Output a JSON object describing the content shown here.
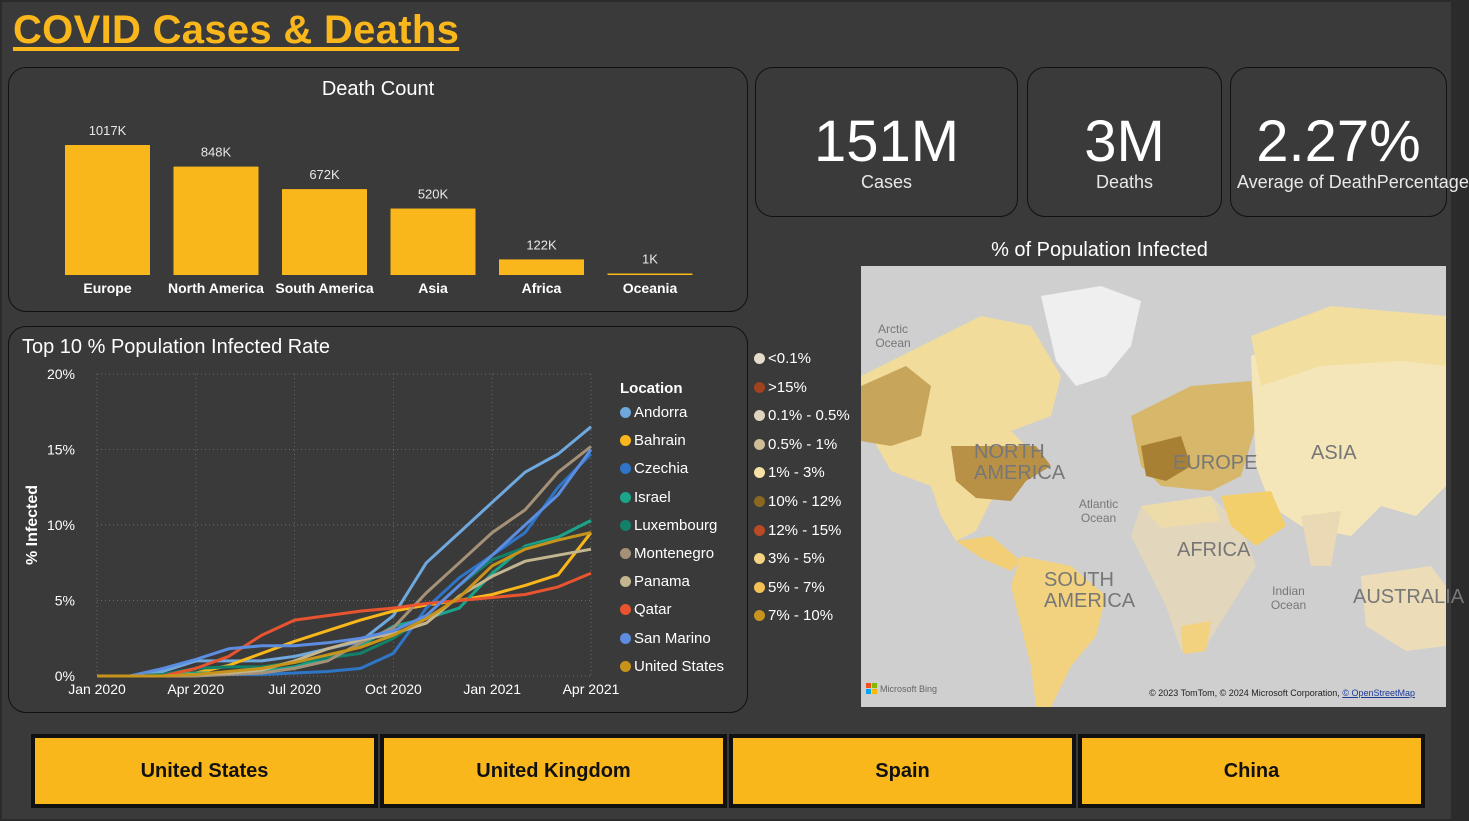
{
  "header": {
    "title": "COVID Cases & Deaths"
  },
  "death_count": {
    "title": "Death Count",
    "chart_data": {
      "type": "bar",
      "title": "Death Count",
      "categories": [
        "Europe",
        "North America",
        "South America",
        "Asia",
        "Africa",
        "Oceania"
      ],
      "values": [
        1017000,
        848000,
        672000,
        520000,
        122000,
        1000
      ],
      "data_labels": [
        "1017K",
        "848K",
        "672K",
        "520K",
        "122K",
        "1K"
      ],
      "color": "#f9b71b"
    }
  },
  "kpis": [
    {
      "value": "151M",
      "label": "Cases"
    },
    {
      "value": "3M",
      "label": "Deaths"
    },
    {
      "value": "2.27%",
      "label": "Average of DeathPercentage"
    }
  ],
  "infected_chart": {
    "title": "Top 10 % Population Infected Rate",
    "chart_data": {
      "type": "line",
      "title": "Top 10 % Population Infected Rate",
      "ylabel": "% Infected",
      "xlabel": "",
      "x": [
        "Jan 2020",
        "Feb 2020",
        "Mar 2020",
        "Apr 2020",
        "May 2020",
        "Jun 2020",
        "Jul 2020",
        "Aug 2020",
        "Sep 2020",
        "Oct 2020",
        "Nov 2020",
        "Dec 2020",
        "Jan 2021",
        "Feb 2021",
        "Mar 2021",
        "Apr 2021"
      ],
      "x_ticks": [
        "Jan 2020",
        "Apr 2020",
        "Jul 2020",
        "Oct 2020",
        "Jan 2021",
        "Apr 2021"
      ],
      "y_ticks": [
        "0%",
        "5%",
        "10%",
        "15%",
        "20%"
      ],
      "ylim": [
        0,
        20
      ],
      "grid": true,
      "legend_title": "Location",
      "legend_position": "right",
      "series": [
        {
          "name": "Andorra",
          "color": "#6fa8dc",
          "values": [
            0,
            0,
            0.3,
            1,
            1,
            1,
            1.3,
            1.8,
            2.3,
            4,
            7.5,
            9.5,
            11.5,
            13.5,
            14.7,
            16.5
          ]
        },
        {
          "name": "Bahrain",
          "color": "#f9b71b",
          "values": [
            0,
            0,
            0.1,
            0.2,
            0.7,
            1.5,
            2.3,
            3,
            3.7,
            4.3,
            4.7,
            5,
            5.4,
            6,
            6.7,
            9.5
          ]
        },
        {
          "name": "Czechia",
          "color": "#2f75c7",
          "values": [
            0,
            0,
            0,
            0.1,
            0.1,
            0.1,
            0.2,
            0.3,
            0.5,
            1.5,
            4.5,
            6.5,
            8,
            9.5,
            12.5,
            14.7
          ]
        },
        {
          "name": "Israel",
          "color": "#1aa58a",
          "values": [
            0,
            0,
            0,
            0.2,
            0.2,
            0.3,
            0.6,
            1.2,
            2,
            3.3,
            3.8,
            4.5,
            6.8,
            8.6,
            9.2,
            10.3
          ]
        },
        {
          "name": "Luxembourg",
          "color": "#13806a",
          "values": [
            0,
            0,
            0.1,
            0.5,
            0.6,
            0.6,
            0.9,
            1.2,
            1.5,
            2.5,
            4,
            6,
            7.7,
            8.5,
            9,
            9.5
          ]
        },
        {
          "name": "Montenegro",
          "color": "#a59178",
          "values": [
            0,
            0,
            0,
            0,
            0.1,
            0.2,
            0.5,
            1,
            2.2,
            3.2,
            5.5,
            7.5,
            9.5,
            11,
            13.5,
            15.2
          ]
        },
        {
          "name": "Panama",
          "color": "#c3b58f",
          "values": [
            0,
            0,
            0,
            0.1,
            0.2,
            0.4,
            1,
            1.8,
            2.4,
            2.8,
            3.5,
            5.3,
            6.6,
            7.6,
            8,
            8.4
          ]
        },
        {
          "name": "Qatar",
          "color": "#e8542f",
          "values": [
            0,
            0,
            0,
            0.5,
            1.3,
            2.7,
            3.7,
            4,
            4.3,
            4.5,
            4.8,
            5,
            5.2,
            5.4,
            5.9,
            6.8
          ]
        },
        {
          "name": "San Marino",
          "color": "#5d8de0",
          "values": [
            0,
            0,
            0.5,
            1.1,
            1.8,
            2,
            2,
            2.2,
            2.5,
            3,
            4,
            6,
            8,
            10,
            12,
            15
          ]
        },
        {
          "name": "United States",
          "color": "#c8931a",
          "values": [
            0,
            0,
            0,
            0.1,
            0.3,
            0.5,
            0.9,
            1.4,
            1.9,
            2.7,
            3.8,
            5.2,
            7.3,
            8.4,
            9,
            9.5
          ]
        }
      ]
    }
  },
  "map": {
    "title": "% of Population Infected",
    "legend": [
      {
        "label": "<0.1%",
        "color": "#e6dccb"
      },
      {
        "label": ">15%",
        "color": "#a0411f"
      },
      {
        "label": "0.1% - 0.5%",
        "color": "#dfd4be"
      },
      {
        "label": "0.5% - 1%",
        "color": "#cdbc95"
      },
      {
        "label": "1% - 3%",
        "color": "#f6e2a4"
      },
      {
        "label": "10% - 12%",
        "color": "#8a6820"
      },
      {
        "label": "12% - 15%",
        "color": "#b94a24"
      },
      {
        "label": "3% - 5%",
        "color": "#f4d382"
      },
      {
        "label": "5% - 7%",
        "color": "#f2c155"
      },
      {
        "label": "7% - 10%",
        "color": "#c7941f"
      }
    ],
    "labels": {
      "arctic": "Arctic Ocean",
      "north_america": "NORTH AMERICA",
      "europe": "EUROPE",
      "asia": "ASIA",
      "atlantic": "Atlantic Ocean",
      "africa": "AFRICA",
      "south_america": "SOUTH AMERICA",
      "indian": "Indian Ocean",
      "australia": "AUSTRALIA"
    },
    "logo": "Microsoft Bing",
    "attribution": "© 2023 TomTom, © 2024 Microsoft Corporation,",
    "attribution_link": "© OpenStreetMap"
  },
  "filters": [
    "United States",
    "United Kingdom",
    "Spain",
    "China"
  ]
}
